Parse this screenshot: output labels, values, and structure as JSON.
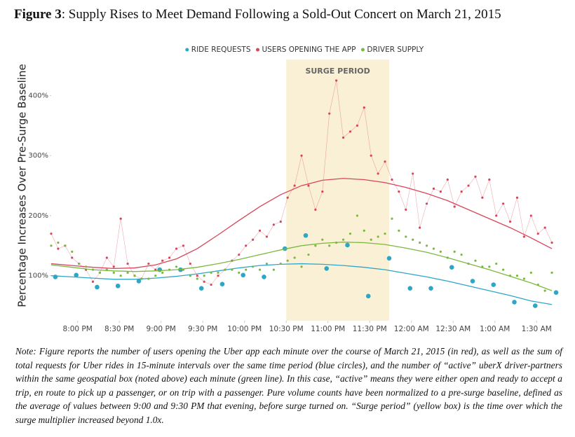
{
  "chart_data": {
    "type": "line",
    "title_label": "Figure 3",
    "title": ": Supply Rises to Meet Demand Following a Sold-Out Concert on March 21, 2015",
    "ylabel": "Percentage Increases Over Pre-Surge Baseline",
    "annotation": "SURGE PERIOD",
    "surge_period": [
      1350,
      1424
    ],
    "surge_color": "#faf0d6",
    "legend": "top",
    "grid": false,
    "xlim": [
      1181,
      1545
    ],
    "ylim": [
      25,
      460
    ],
    "xticks": [
      {
        "value": 1200,
        "label": "8:00 PM"
      },
      {
        "value": 1230,
        "label": "8:30 PM"
      },
      {
        "value": 1260,
        "label": "9:00 PM"
      },
      {
        "value": 1290,
        "label": "9:30 PM"
      },
      {
        "value": 1320,
        "label": "10:00 PM"
      },
      {
        "value": 1350,
        "label": "10:30 PM"
      },
      {
        "value": 1380,
        "label": "11:00 PM"
      },
      {
        "value": 1410,
        "label": "11:30 PM"
      },
      {
        "value": 1440,
        "label": "12:00 AM"
      },
      {
        "value": 1470,
        "label": "12:30 AM"
      },
      {
        "value": 1500,
        "label": "1:00 AM"
      },
      {
        "value": 1530,
        "label": "1:30 AM"
      }
    ],
    "yticks": [
      {
        "value": 100,
        "label": "100%"
      },
      {
        "value": 200,
        "label": "200%"
      },
      {
        "value": 300,
        "label": "300%"
      },
      {
        "value": 400,
        "label": "400%"
      }
    ],
    "series": [
      {
        "name": "RIDE REQUESTS",
        "color": "#2ea6c8",
        "style": "circles",
        "x": [
          1184,
          1199,
          1214,
          1229,
          1244,
          1259,
          1274,
          1289,
          1304,
          1319,
          1334,
          1349,
          1364,
          1379,
          1394,
          1409,
          1424,
          1439,
          1454,
          1469,
          1484,
          1499,
          1514,
          1529,
          1544
        ],
        "values": [
          98,
          101,
          81,
          83,
          91,
          110,
          110,
          79,
          86,
          101,
          98,
          145,
          167,
          112,
          151,
          66,
          129,
          79,
          79,
          114,
          91,
          85,
          56,
          50,
          72
        ],
        "trend": {
          "x": [
            1181,
            1196,
            1211,
            1226,
            1241,
            1256,
            1271,
            1286,
            1301,
            1316,
            1331,
            1346,
            1361,
            1376,
            1391,
            1406,
            1421,
            1436,
            1451,
            1466,
            1481,
            1496,
            1511,
            1526,
            1541
          ],
          "values": [
            100,
            98,
            96,
            94,
            94,
            96,
            99,
            103,
            108,
            113,
            117,
            119,
            120,
            119,
            117,
            114,
            110,
            104,
            98,
            91,
            83,
            75,
            67,
            58,
            52
          ]
        }
      },
      {
        "name": "USERS OPENING THE APP",
        "color": "#d9455b",
        "style": "line-dots",
        "x": [
          1181,
          1186,
          1191,
          1196,
          1201,
          1206,
          1211,
          1216,
          1221,
          1226,
          1231,
          1236,
          1241,
          1246,
          1251,
          1256,
          1261,
          1266,
          1271,
          1276,
          1281,
          1286,
          1291,
          1296,
          1301,
          1306,
          1311,
          1316,
          1321,
          1326,
          1331,
          1336,
          1341,
          1346,
          1351,
          1356,
          1361,
          1366,
          1371,
          1376,
          1381,
          1386,
          1391,
          1396,
          1401,
          1406,
          1411,
          1416,
          1421,
          1426,
          1431,
          1436,
          1441,
          1446,
          1451,
          1456,
          1461,
          1466,
          1471,
          1476,
          1481,
          1486,
          1491,
          1496,
          1501,
          1506,
          1511,
          1516,
          1521,
          1526,
          1531,
          1536,
          1541
        ],
        "values": [
          170,
          145,
          150,
          130,
          120,
          110,
          90,
          105,
          130,
          115,
          195,
          120,
          100,
          95,
          120,
          110,
          125,
          130,
          145,
          150,
          120,
          100,
          90,
          85,
          100,
          110,
          125,
          135,
          150,
          160,
          175,
          165,
          185,
          190,
          230,
          250,
          300,
          250,
          210,
          240,
          370,
          425,
          330,
          340,
          350,
          380,
          300,
          270,
          290,
          260,
          240,
          210,
          270,
          180,
          220,
          245,
          240,
          260,
          215,
          240,
          250,
          265,
          230,
          260,
          200,
          220,
          190,
          230,
          165,
          200,
          170,
          180,
          155
        ],
        "trend": {
          "x": [
            1181,
            1196,
            1211,
            1226,
            1241,
            1256,
            1271,
            1286,
            1301,
            1316,
            1331,
            1346,
            1361,
            1376,
            1391,
            1406,
            1421,
            1436,
            1451,
            1466,
            1481,
            1496,
            1511,
            1526,
            1541
          ],
          "values": [
            120,
            117,
            114,
            112,
            113,
            118,
            128,
            145,
            168,
            192,
            215,
            235,
            250,
            259,
            262,
            260,
            255,
            247,
            237,
            225,
            210,
            195,
            180,
            163,
            145
          ]
        }
      },
      {
        "name": "DRIVER SUPPLY",
        "color": "#7cb83f",
        "style": "dots",
        "x": [
          1181,
          1186,
          1191,
          1196,
          1201,
          1206,
          1211,
          1216,
          1221,
          1226,
          1231,
          1236,
          1241,
          1246,
          1251,
          1256,
          1261,
          1266,
          1271,
          1276,
          1281,
          1286,
          1291,
          1296,
          1301,
          1306,
          1311,
          1316,
          1321,
          1326,
          1331,
          1336,
          1341,
          1346,
          1351,
          1356,
          1361,
          1366,
          1371,
          1376,
          1381,
          1386,
          1391,
          1396,
          1401,
          1406,
          1411,
          1416,
          1421,
          1426,
          1431,
          1436,
          1441,
          1446,
          1451,
          1456,
          1461,
          1466,
          1471,
          1476,
          1481,
          1486,
          1491,
          1496,
          1501,
          1506,
          1511,
          1516,
          1521,
          1526,
          1531,
          1536,
          1541
        ],
        "values": [
          150,
          155,
          150,
          140,
          120,
          115,
          110,
          105,
          110,
          105,
          100,
          105,
          100,
          95,
          95,
          100,
          105,
          110,
          115,
          110,
          100,
          95,
          100,
          105,
          105,
          110,
          110,
          105,
          110,
          115,
          110,
          120,
          110,
          120,
          125,
          130,
          115,
          135,
          150,
          160,
          150,
          155,
          160,
          170,
          200,
          175,
          160,
          165,
          170,
          195,
          175,
          165,
          160,
          155,
          150,
          145,
          140,
          130,
          140,
          135,
          120,
          125,
          115,
          115,
          120,
          110,
          100,
          100,
          95,
          105,
          85,
          75,
          105
        ],
        "trend": {
          "x": [
            1181,
            1196,
            1211,
            1226,
            1241,
            1256,
            1271,
            1286,
            1301,
            1316,
            1331,
            1346,
            1361,
            1376,
            1391,
            1406,
            1421,
            1436,
            1451,
            1466,
            1481,
            1496,
            1511,
            1526,
            1541
          ],
          "values": [
            118,
            114,
            110,
            108,
            107,
            108,
            110,
            114,
            120,
            127,
            135,
            143,
            150,
            154,
            156,
            155,
            152,
            146,
            139,
            130,
            120,
            110,
            99,
            88,
            75
          ]
        }
      }
    ],
    "note": "Note: Figure reports the number of users opening the Uber app each minute over the course of March 21, 2015 (in red), as well as the sum of total requests for Uber rides in 15-minute intervals over the same time period (blue circles), and the number of “active” uberX driver-partners within the same geospatial box (noted above) each minute (green line). In this case, “active” means they were either open and ready to accept a trip, en route to pick up a passenger, or on trip with a passenger. Pure volume counts have been normalized to a pre-surge baseline, defined as the average of values between 9:00 and 9:30 PM that evening, before surge turned on. “Surge period” (yellow box) is the time over which the surge multiplier increased beyond 1.0x."
  }
}
